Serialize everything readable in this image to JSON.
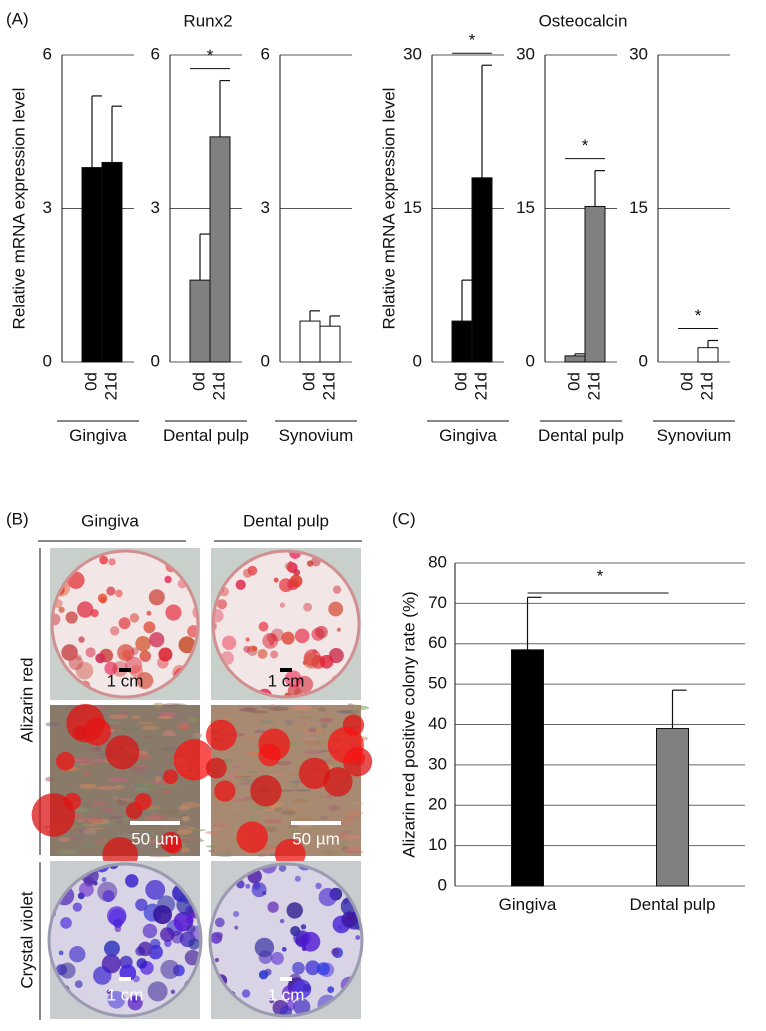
{
  "chart_data": [
    {
      "type": "bar",
      "panel_label": "(A)",
      "y_label": "Relative mRNA expression level",
      "group": "Gingiva",
      "categories": [
        "0d",
        "21d"
      ],
      "values": [
        3.8,
        3.9
      ],
      "errors": [
        1.4,
        1.1
      ],
      "color": "#000000",
      "ylim": [
        0,
        6
      ],
      "yticks": [
        0,
        3,
        6
      ]
    },
    {
      "type": "bar",
      "title": "Runx2",
      "group": "Dental pulp",
      "categories": [
        "0d",
        "21d"
      ],
      "values": [
        1.6,
        4.4
      ],
      "errors": [
        0.9,
        1.1
      ],
      "color": "#808080",
      "ylim": [
        0,
        6
      ],
      "yticks": [
        0,
        3,
        6
      ],
      "significance": "*"
    },
    {
      "type": "bar",
      "group": "Synovium",
      "categories": [
        "0d",
        "21d"
      ],
      "values": [
        0.8,
        0.7
      ],
      "errors": [
        0.2,
        0.2
      ],
      "color": "#ffffff",
      "ylim": [
        0,
        6
      ],
      "yticks": [
        0,
        3,
        6
      ]
    },
    {
      "type": "bar",
      "y_label": "Relative mRNA expression level",
      "group": "Gingiva",
      "categories": [
        "0d",
        "21d"
      ],
      "values": [
        4,
        18
      ],
      "errors": [
        4,
        11
      ],
      "color": "#000000",
      "ylim": [
        0,
        30
      ],
      "yticks": [
        0,
        15,
        30
      ],
      "significance": "*"
    },
    {
      "type": "bar",
      "title": "Osteocalcin",
      "group": "Dental pulp",
      "categories": [
        "0d",
        "21d"
      ],
      "values": [
        0.6,
        15.2
      ],
      "errors": [
        0.2,
        3.5
      ],
      "color": "#808080",
      "ylim": [
        0,
        30
      ],
      "yticks": [
        0,
        15,
        30
      ],
      "significance": "*"
    },
    {
      "type": "bar",
      "group": "Synovium",
      "categories": [
        "0d",
        "21d"
      ],
      "values": [
        0,
        1.4
      ],
      "errors": [
        0,
        0.7
      ],
      "color": "#ffffff",
      "ylim": [
        0,
        30
      ],
      "yticks": [
        0,
        15,
        30
      ],
      "significance": "*"
    },
    {
      "type": "bar",
      "panel_label": "(C)",
      "y_label": "Alizarin red positive colony rate (%)",
      "categories": [
        "Gingiva",
        "Dental pulp"
      ],
      "values": [
        58.5,
        39
      ],
      "errors": [
        13,
        9.5
      ],
      "colors": [
        "#000000",
        "#808080"
      ],
      "ylim": [
        0,
        80
      ],
      "yticks": [
        0,
        10,
        20,
        30,
        40,
        50,
        60,
        70,
        80
      ],
      "grid": true,
      "significance": "*"
    }
  ],
  "panel_b": {
    "label": "(B)",
    "columns": [
      "Gingiva",
      "Dental pulp"
    ],
    "rows": [
      "Alizarin red",
      "Crystal violet"
    ],
    "scale_bars": [
      [
        "1 cm",
        "1 cm"
      ],
      [
        "50 µm",
        "50 µm"
      ],
      [
        "1 cm",
        "1 cm"
      ]
    ]
  }
}
